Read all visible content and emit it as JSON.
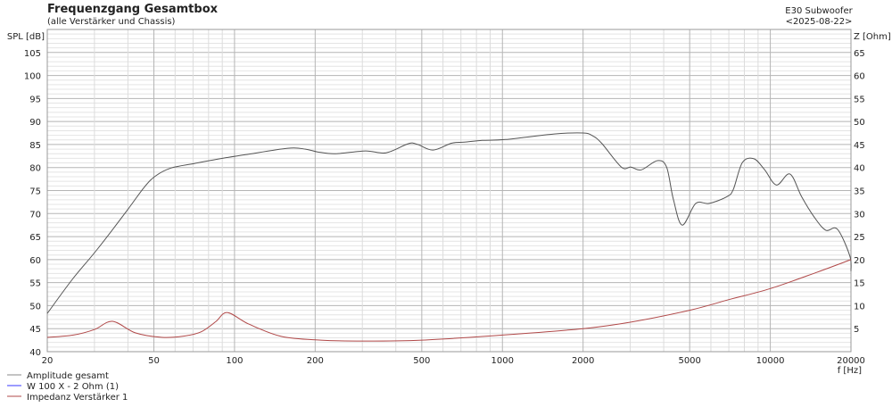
{
  "chart_data": {
    "type": "line",
    "title": "Frequenzgang Gesamtbox",
    "subtitle": "(alle Verstärker und Chassis)",
    "info_line1": "E30 Subwoofer",
    "info_line2": "<2025-08-22>",
    "xlabel": "f [Hz]",
    "ylabel": "SPL [dB]",
    "y2label": "Z [Ohm]",
    "x_scale": "log",
    "xlim": [
      20,
      20000
    ],
    "ylim": [
      40,
      110
    ],
    "y2lim": [
      0,
      70
    ],
    "grid": true,
    "legend_position": "bottom-left",
    "x_ticks": [
      20,
      50,
      100,
      200,
      500,
      1000,
      2000,
      5000,
      10000,
      20000
    ],
    "y_ticks": [
      40,
      45,
      50,
      55,
      60,
      65,
      70,
      75,
      80,
      85,
      90,
      95,
      100,
      105
    ],
    "y2_ticks": [
      5,
      10,
      15,
      20,
      25,
      30,
      35,
      40,
      45,
      50,
      55,
      60,
      65
    ],
    "series": [
      {
        "name": "Amplitude gesamt",
        "axis": "left",
        "color": "#555555",
        "legend_color": "#8a8a8a",
        "points": [
          [
            20,
            48.3
          ],
          [
            24.8,
            55.7
          ],
          [
            30.6,
            62.1
          ],
          [
            39.4,
            70.4
          ],
          [
            46,
            75.7
          ],
          [
            50.8,
            78.2
          ],
          [
            58,
            79.9
          ],
          [
            71,
            80.9
          ],
          [
            92,
            82.1
          ],
          [
            110,
            82.8
          ],
          [
            158,
            84.2
          ],
          [
            184,
            84.0
          ],
          [
            204,
            83.4
          ],
          [
            238,
            83.0
          ],
          [
            308,
            83.6
          ],
          [
            368,
            83.2
          ],
          [
            447,
            85.2
          ],
          [
            483,
            85.0
          ],
          [
            551,
            83.8
          ],
          [
            647,
            85.3
          ],
          [
            721,
            85.5
          ],
          [
            841,
            85.9
          ],
          [
            1028,
            86.1
          ],
          [
            1560,
            87.3
          ],
          [
            2000,
            87.5
          ],
          [
            2169,
            86.9
          ],
          [
            2345,
            85.3
          ],
          [
            2779,
            80.1
          ],
          [
            3020,
            80.1
          ],
          [
            3300,
            79.5
          ],
          [
            3785,
            81.5
          ],
          [
            4100,
            80.1
          ],
          [
            4345,
            73.1
          ],
          [
            4690,
            67.5
          ],
          [
            5270,
            72.2
          ],
          [
            5910,
            72.2
          ],
          [
            6900,
            73.7
          ],
          [
            7280,
            75.3
          ],
          [
            7870,
            81.1
          ],
          [
            8690,
            81.9
          ],
          [
            9530,
            79.5
          ],
          [
            10540,
            76.2
          ],
          [
            11830,
            78.6
          ],
          [
            13080,
            73.7
          ],
          [
            14560,
            69.3
          ],
          [
            16100,
            66.4
          ],
          [
            17800,
            66.6
          ],
          [
            19800,
            60.8
          ],
          [
            20000,
            57.5
          ]
        ]
      },
      {
        "name": "W 100 X - 2 Ohm (1)",
        "axis": "left",
        "color": "#3a3aff",
        "legend_color": "#3a3aff",
        "points": []
      },
      {
        "name": "Impedanz Verstärker 1",
        "axis": "right",
        "color": "#b04848",
        "legend_color": "#b04848",
        "points": [
          [
            20,
            3.1
          ],
          [
            25,
            3.6
          ],
          [
            30,
            4.8
          ],
          [
            35,
            6.6
          ],
          [
            42.6,
            4.1
          ],
          [
            53.7,
            3.1
          ],
          [
            65,
            3.4
          ],
          [
            75,
            4.3
          ],
          [
            85,
            6.5
          ],
          [
            94,
            8.5
          ],
          [
            113,
            6.0
          ],
          [
            150,
            3.3
          ],
          [
            210,
            2.5
          ],
          [
            300,
            2.3
          ],
          [
            500,
            2.5
          ],
          [
            1000,
            3.6
          ],
          [
            2000,
            5.0
          ],
          [
            3000,
            6.4
          ],
          [
            5000,
            9.0
          ],
          [
            7000,
            11.3
          ],
          [
            10000,
            13.7
          ],
          [
            15000,
            17.3
          ],
          [
            20000,
            20.0
          ]
        ]
      }
    ]
  }
}
